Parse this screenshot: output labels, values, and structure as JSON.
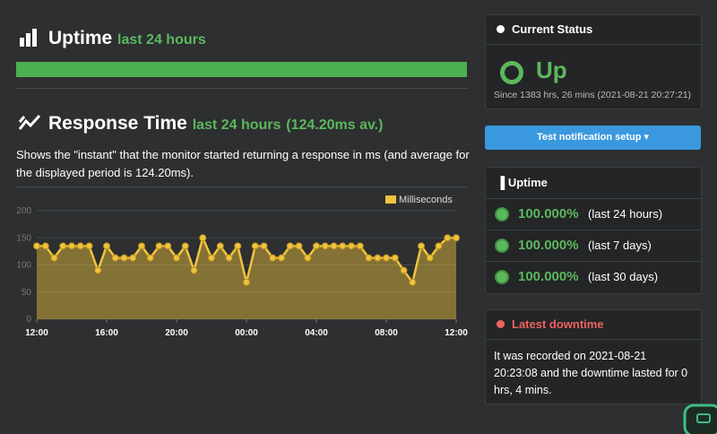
{
  "uptime": {
    "title": "Uptime",
    "period": "last 24 hours"
  },
  "response": {
    "title": "Response Time",
    "period": "last 24 hours",
    "average": "(124.20ms av.)",
    "description": "Shows the \"instant\" that the monitor started returning a response in ms (and average for the displayed period is 124.20ms)."
  },
  "chart_data": {
    "type": "line",
    "categories": [
      "12:00",
      null,
      null,
      null,
      null,
      null,
      null,
      null,
      "16:00",
      null,
      null,
      null,
      null,
      null,
      null,
      null,
      "20:00",
      null,
      null,
      null,
      null,
      null,
      null,
      null,
      "00:00",
      null,
      null,
      null,
      null,
      null,
      null,
      null,
      "04:00",
      null,
      null,
      null,
      null,
      null,
      null,
      null,
      "08:00",
      null,
      null,
      null,
      null,
      null,
      null,
      null,
      "12:00"
    ],
    "series": [
      {
        "name": "Milliseconds",
        "color": "#f0c33c",
        "values": [
          135,
          135,
          113,
          135,
          135,
          135,
          135,
          90,
          135,
          113,
          113,
          113,
          135,
          113,
          135,
          135,
          113,
          135,
          90,
          150,
          113,
          135,
          113,
          135,
          68,
          135,
          135,
          113,
          113,
          135,
          135,
          113,
          135,
          135,
          135,
          135,
          135,
          135,
          113,
          113,
          113,
          113,
          90,
          68,
          135,
          113,
          135,
          150,
          150
        ]
      }
    ],
    "ylim": [
      0,
      200
    ],
    "yticks": [
      0,
      50,
      100,
      150,
      200
    ],
    "grid": true,
    "legend": "top-right"
  },
  "status": {
    "title": "Current Status",
    "state": "Up",
    "since": "Since 1383 hrs, 26 mins (2021-08-21 20:27:21)"
  },
  "button": "Test notification setup",
  "uptime_panel": {
    "title": "Uptime",
    "rows": [
      {
        "value": "100.000%",
        "period": "(last 24 hours)"
      },
      {
        "value": "100.000%",
        "period": "(last 7 days)"
      },
      {
        "value": "100.000%",
        "period": "(last 30 days)"
      }
    ]
  },
  "downtime": {
    "title": "Latest downtime",
    "text": "It was recorded on 2021-08-21 20:23:08 and the downtime lasted for 0 hrs, 4 mins."
  }
}
